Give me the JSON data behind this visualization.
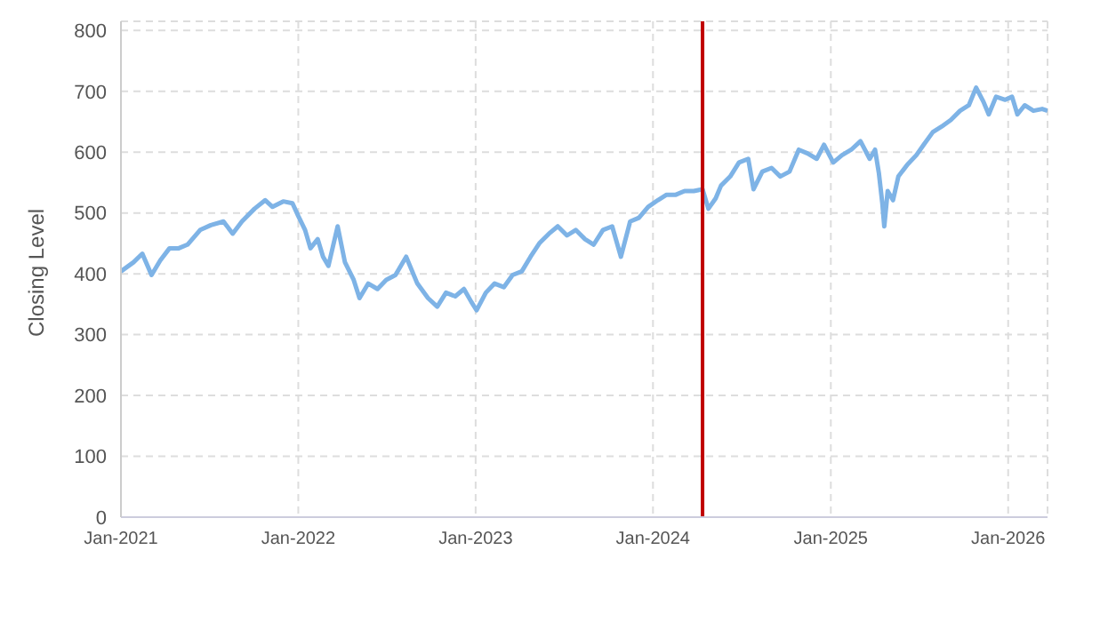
{
  "chart_data": {
    "type": "line",
    "ylabel": "Closing Level",
    "x": [
      "2021-01-01",
      "2021-01-27",
      "2021-02-14",
      "2021-03-05",
      "2021-03-23",
      "2021-04-11",
      "2021-04-30",
      "2021-05-18",
      "2021-06-13",
      "2021-07-05",
      "2021-07-31",
      "2021-08-19",
      "2021-09-07",
      "2021-10-03",
      "2021-10-25",
      "2021-11-09",
      "2021-12-01",
      "2021-12-20",
      "2022-01-01",
      "2022-01-15",
      "2022-01-26",
      "2022-02-10",
      "2022-02-21",
      "2022-03-04",
      "2022-03-23",
      "2022-04-07",
      "2022-04-25",
      "2022-05-07",
      "2022-05-25",
      "2022-06-13",
      "2022-07-01",
      "2022-07-20",
      "2022-08-11",
      "2022-09-03",
      "2022-09-25",
      "2022-10-14",
      "2022-11-01",
      "2022-11-20",
      "2022-12-08",
      "2022-12-23",
      "2023-01-03",
      "2023-01-22",
      "2023-02-09",
      "2023-02-28",
      "2023-03-18",
      "2023-04-06",
      "2023-04-24",
      "2023-05-13",
      "2023-06-01",
      "2023-06-19",
      "2023-07-08",
      "2023-07-26",
      "2023-08-14",
      "2023-09-01",
      "2023-09-20",
      "2023-10-09",
      "2023-10-27",
      "2023-11-15",
      "2023-12-03",
      "2023-12-22",
      "2024-01-11",
      "2024-01-29",
      "2024-02-17",
      "2024-03-06",
      "2024-03-25",
      "2024-04-12",
      "2024-04-24",
      "2024-05-09",
      "2024-05-20",
      "2024-06-08",
      "2024-06-26",
      "2024-07-15",
      "2024-07-26",
      "2024-08-13",
      "2024-09-01",
      "2024-09-19",
      "2024-10-08",
      "2024-10-27",
      "2024-11-14",
      "2024-12-03",
      "2024-12-18",
      "2025-01-06",
      "2025-01-24",
      "2025-02-12",
      "2025-03-03",
      "2025-03-22",
      "2025-04-02",
      "2025-04-10",
      "2025-04-17",
      "2025-04-21",
      "2025-04-28",
      "2025-05-09",
      "2025-05-20",
      "2025-06-08",
      "2025-06-26",
      "2025-07-11",
      "2025-07-30",
      "2025-08-17",
      "2025-09-05",
      "2025-09-24",
      "2025-10-12",
      "2025-10-27",
      "2025-11-11",
      "2025-11-22",
      "2025-12-07",
      "2025-12-26",
      "2026-01-09",
      "2026-01-20",
      "2026-02-04",
      "2026-02-22",
      "2026-03-12",
      "2026-03-23"
    ],
    "series": [
      {
        "color": "#7eb3e6",
        "values": [
          404,
          419,
          433,
          398,
          422,
          442,
          442,
          448,
          472,
          480,
          486,
          466,
          486,
          507,
          521,
          510,
          519,
          516,
          495,
          472,
          442,
          457,
          428,
          413,
          478,
          419,
          390,
          360,
          384,
          375,
          390,
          398,
          428,
          384,
          360,
          346,
          369,
          363,
          375,
          354,
          340,
          369,
          384,
          378,
          398,
          404,
          428,
          451,
          466,
          478,
          463,
          472,
          457,
          448,
          472,
          478,
          428,
          486,
          492,
          510,
          521,
          530,
          530,
          536,
          536,
          539,
          507,
          524,
          545,
          560,
          583,
          589,
          539,
          568,
          574,
          560,
          568,
          604,
          598,
          589,
          612,
          583,
          595,
          604,
          618,
          589,
          604,
          565,
          516,
          478,
          536,
          521,
          560,
          580,
          595,
          612,
          633,
          642,
          653,
          668,
          677,
          706,
          683,
          662,
          691,
          686,
          691,
          662,
          677,
          668,
          671,
          668
        ]
      }
    ],
    "xlim": [
      "2021-01-01",
      "2026-03-23"
    ],
    "xticks": [
      {
        "value": "2021-01-01",
        "label": "Jan-2021"
      },
      {
        "value": "2022-01-01",
        "label": "Jan-2022"
      },
      {
        "value": "2023-01-01",
        "label": "Jan-2023"
      },
      {
        "value": "2024-01-01",
        "label": "Jan-2024"
      },
      {
        "value": "2025-01-01",
        "label": "Jan-2025"
      },
      {
        "value": "2026-01-01",
        "label": "Jan-2026"
      }
    ],
    "ylim": [
      0,
      815
    ],
    "yticks": [
      0,
      100,
      200,
      300,
      400,
      500,
      600,
      700,
      800
    ],
    "grid": true,
    "marker": "none",
    "line_style": "solid",
    "ref_lines": [
      {
        "axis": "x",
        "value": "2024-04-12",
        "color": "#c00000"
      }
    ]
  }
}
